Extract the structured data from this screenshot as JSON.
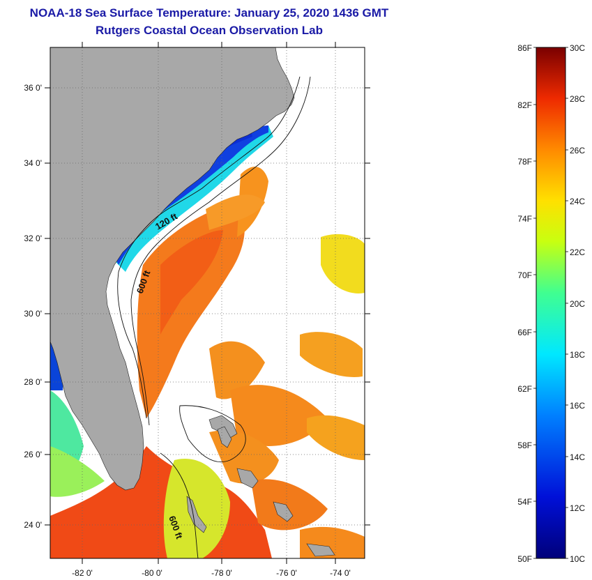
{
  "header": {
    "title": "NOAA-18 Sea Surface Temperature:  January 25, 2020 1436 GMT",
    "subtitle": "Rutgers Coastal Ocean Observation Lab"
  },
  "map": {
    "lat_labels": [
      "36 0'",
      "34 0'",
      "32 0'",
      "30 0'",
      "28 0'",
      "26 0'",
      "24 0'"
    ],
    "lon_labels": [
      "-82 0'",
      "-80 0'",
      "-78 0'",
      "-76 0'",
      "-74 0'"
    ],
    "contours": {
      "shelf": "120 ft",
      "slope": "600 ft",
      "slope_south": "600 ft"
    }
  },
  "colorbar": {
    "fahrenheit": [
      "86F",
      "82F",
      "78F",
      "74F",
      "70F",
      "66F",
      "62F",
      "58F",
      "54F",
      "50F"
    ],
    "celsius": [
      "30C",
      "28C",
      "26C",
      "24C",
      "22C",
      "20C",
      "18C",
      "16C",
      "14C",
      "12C",
      "10C"
    ]
  },
  "colors": {
    "land": "#a8a8a8",
    "cloud": "#ffffff",
    "title": "#1a1aa6"
  }
}
